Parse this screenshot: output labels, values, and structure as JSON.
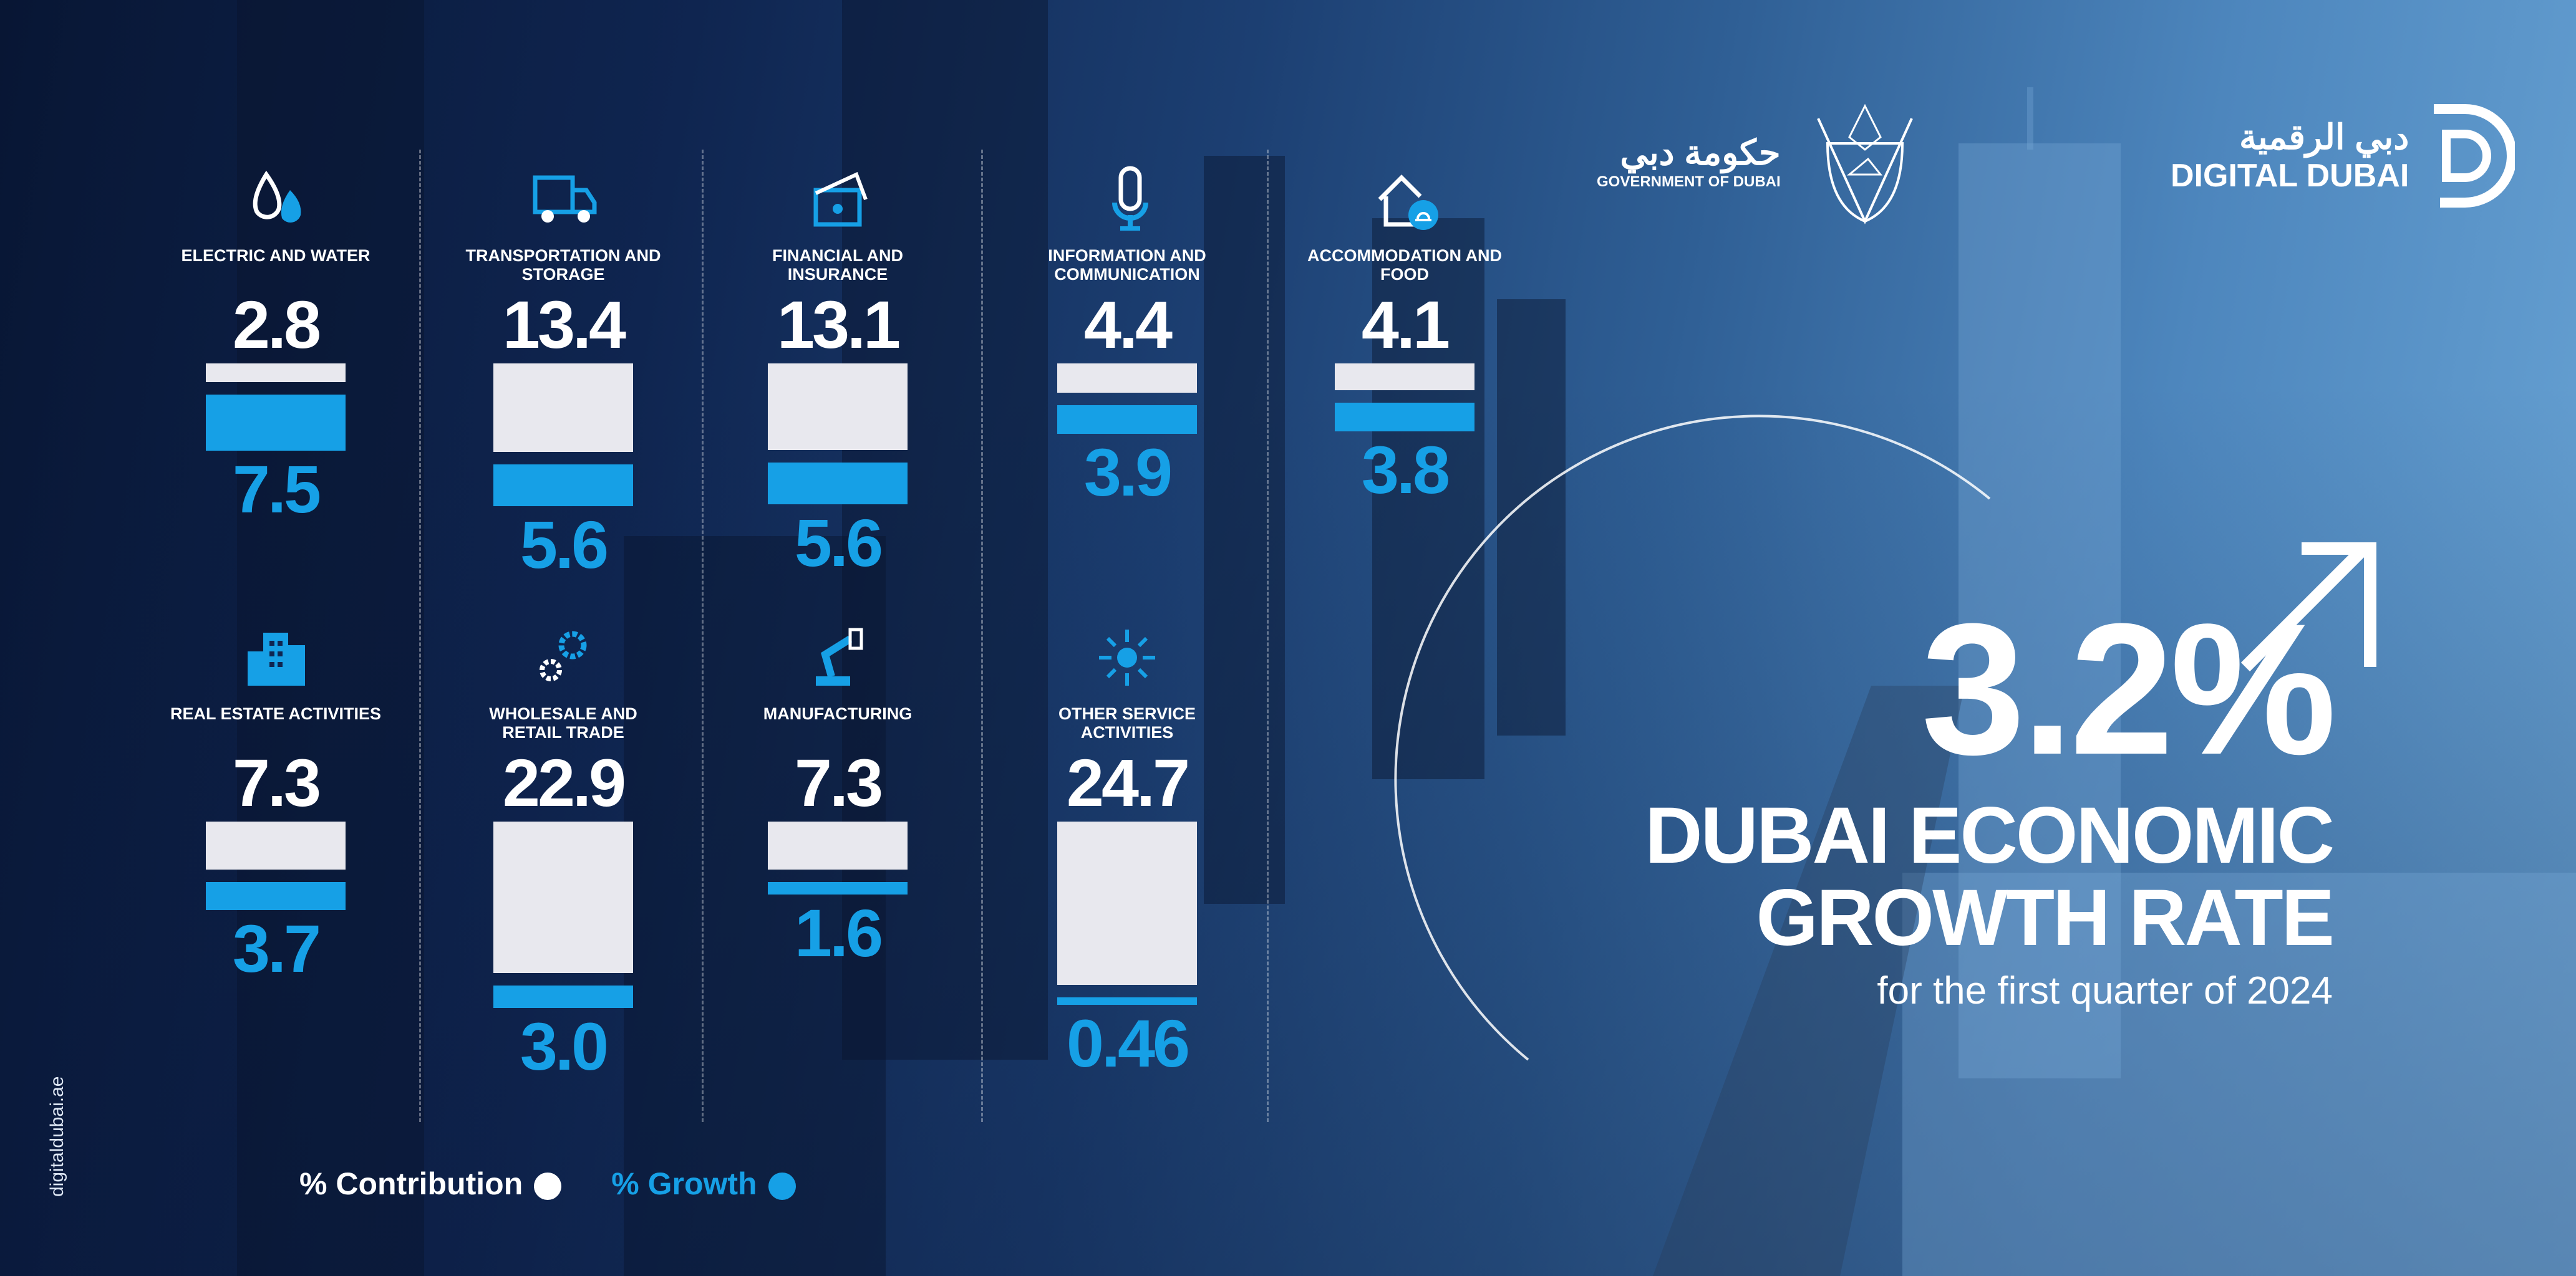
{
  "header": {
    "gov_logo": {
      "arabic": "حكومة دبي",
      "english": "GOVERNMENT OF DUBAI"
    },
    "digital_dubai_logo": {
      "arabic": "دبي الرقمية",
      "english": "DIGITAL DUBAI"
    }
  },
  "headline": {
    "rate": "3.2%",
    "title_line1": "DUBAI ECONOMIC",
    "title_line2": "GROWTH RATE",
    "subtitle": "for the first quarter of 2024"
  },
  "legend": {
    "contribution": "% Contribution",
    "growth": "% Growth"
  },
  "side_text": "digitaldubai.ae",
  "colors": {
    "contribution": "#e8e8ee",
    "growth": "#16a0e6",
    "background": "#0f2550"
  },
  "chart_data": {
    "type": "bar",
    "categories": [
      "ELECTRIC AND WATER",
      "TRANSPORTATION AND STORAGE",
      "FINANCIAL AND INSURANCE",
      "INFORMATION AND COMMUNICATION",
      "ACCOMMODATION AND FOOD",
      "REAL ESTATE ACTIVITIES",
      "WHOLESALE AND RETAIL TRADE",
      "MANUFACTURING",
      "OTHER SERVICE ACTIVITIES"
    ],
    "icons": [
      "water-drop-flame-icon",
      "truck-icon",
      "money-card-icon",
      "microphone-icon",
      "house-bell-icon",
      "buildings-icon",
      "gears-icon",
      "robot-arm-icon",
      "sparkle-icon"
    ],
    "series": [
      {
        "name": "% Contribution",
        "values": [
          "2.8",
          "13.4",
          "13.1",
          "4.4",
          "4.1",
          "7.3",
          "22.9",
          "7.3",
          "24.7"
        ]
      },
      {
        "name": "% Growth",
        "values": [
          "7.5",
          "5.6",
          "5.6",
          "3.9",
          "3.8",
          "3.7",
          "3.0",
          "1.6",
          "0.46"
        ]
      }
    ]
  }
}
